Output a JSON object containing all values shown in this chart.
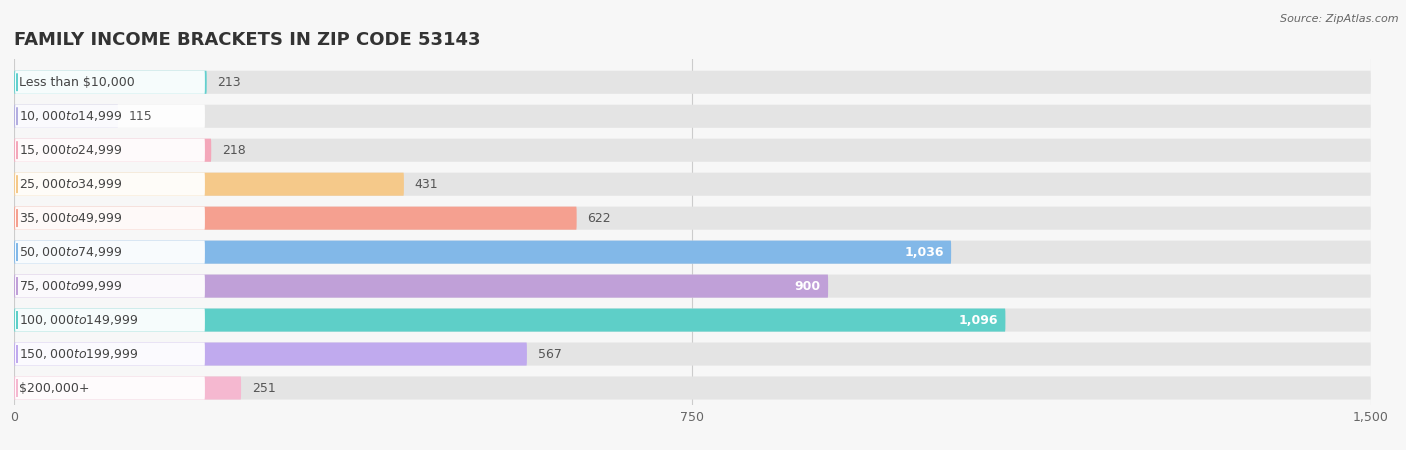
{
  "title": "FAMILY INCOME BRACKETS IN ZIP CODE 53143",
  "source": "Source: ZipAtlas.com",
  "categories": [
    "Less than $10,000",
    "$10,000 to $14,999",
    "$15,000 to $24,999",
    "$25,000 to $34,999",
    "$35,000 to $49,999",
    "$50,000 to $74,999",
    "$75,000 to $99,999",
    "$100,000 to $149,999",
    "$150,000 to $199,999",
    "$200,000+"
  ],
  "values": [
    213,
    115,
    218,
    431,
    622,
    1036,
    900,
    1096,
    567,
    251
  ],
  "bar_colors": [
    "#62d0ce",
    "#b3aee0",
    "#f4a7ba",
    "#f5c98a",
    "#f5a090",
    "#82b8e8",
    "#c0a0d8",
    "#5ecfc8",
    "#c0aaee",
    "#f5b8d0"
  ],
  "label_pill_colors": [
    "#62d0ce",
    "#b3aee0",
    "#f4a7ba",
    "#f5c98a",
    "#f5a090",
    "#82b8e8",
    "#c0a0d8",
    "#5ecfc8",
    "#c0aaee",
    "#f5b8d0"
  ],
  "bg_color": "#f7f7f7",
  "bar_bg_color": "#e4e4e4",
  "xlim": [
    0,
    1500
  ],
  "xticks": [
    0,
    750,
    1500
  ],
  "title_fontsize": 13,
  "label_fontsize": 9,
  "value_fontsize": 9
}
